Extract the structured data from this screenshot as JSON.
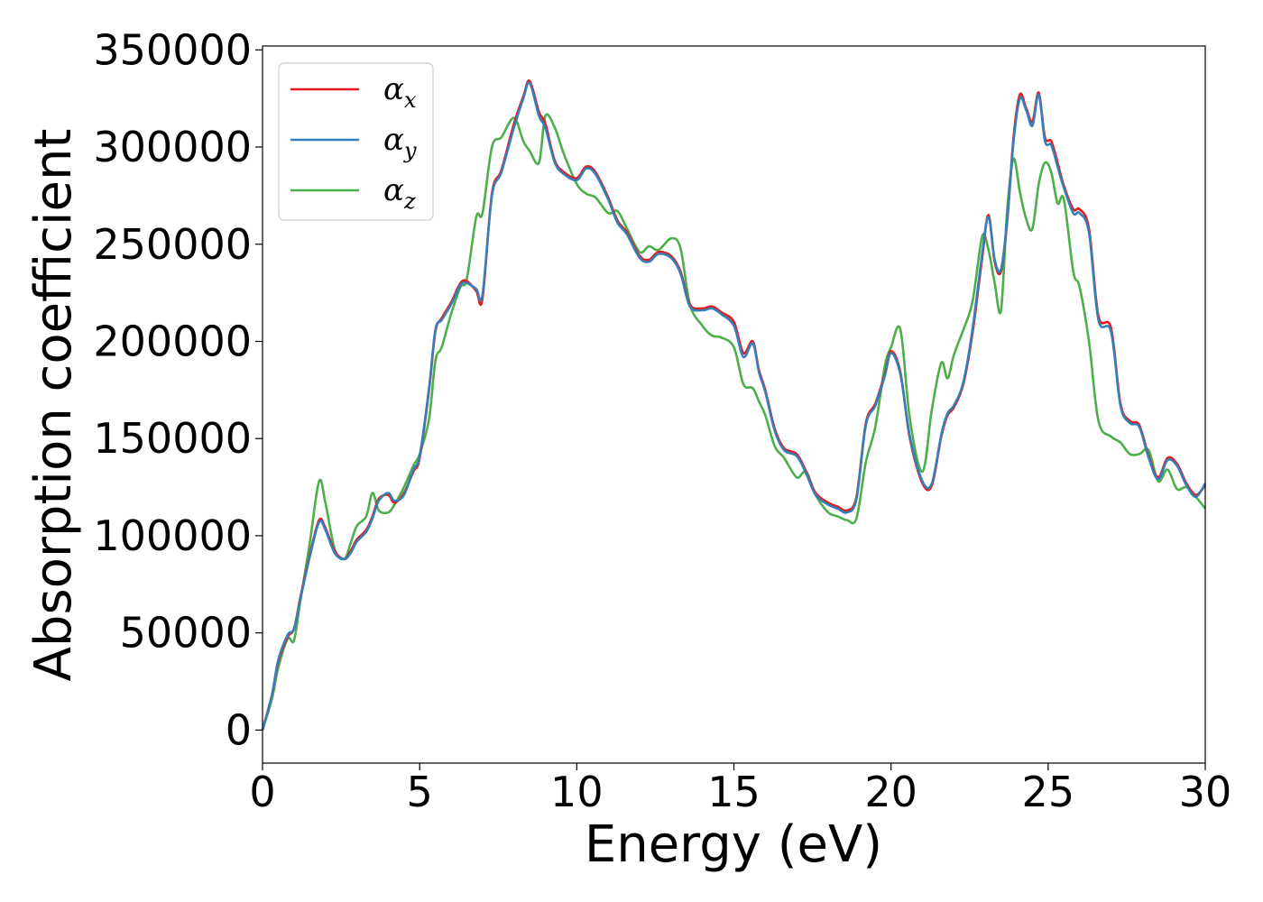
{
  "chart_data": {
    "type": "line",
    "xlabel": "Energy (eV)",
    "ylabel": "Absorption coefficient",
    "xlim": [
      0,
      30
    ],
    "ylim": [
      -17000,
      352000
    ],
    "xticks": [
      0,
      5,
      10,
      15,
      20,
      25,
      30
    ],
    "yticks": [
      0,
      50000,
      100000,
      150000,
      200000,
      250000,
      300000,
      350000
    ],
    "xtick_labels": [
      "0",
      "5",
      "10",
      "15",
      "20",
      "25",
      "30"
    ],
    "ytick_labels": [
      "0",
      "50000",
      "100000",
      "150000",
      "200000",
      "250000",
      "300000",
      "350000"
    ],
    "grid": false,
    "legend_position": "top-left",
    "series": [
      {
        "name": "α",
        "subscript": "x",
        "color": "#e41a1c",
        "x": [
          0,
          0.3,
          0.5,
          0.8,
          1.0,
          1.2,
          1.5,
          1.8,
          2.0,
          2.3,
          2.6,
          2.8,
          3.0,
          3.3,
          3.5,
          3.7,
          4.0,
          4.2,
          4.5,
          4.8,
          5.0,
          5.3,
          5.5,
          5.7,
          6.0,
          6.3,
          6.5,
          6.8,
          7.0,
          7.3,
          7.6,
          8.0,
          8.3,
          8.5,
          8.8,
          9.0,
          9.3,
          9.6,
          10.0,
          10.3,
          10.6,
          11.0,
          11.3,
          11.6,
          12.0,
          12.3,
          12.6,
          13.0,
          13.3,
          13.6,
          14.0,
          14.3,
          14.6,
          15.0,
          15.3,
          15.6,
          15.8,
          16.0,
          16.3,
          16.6,
          17.0,
          17.3,
          17.6,
          18.0,
          18.3,
          18.6,
          18.9,
          19.2,
          19.5,
          19.8,
          20.0,
          20.3,
          20.6,
          21.0,
          21.3,
          21.6,
          21.8,
          22.0,
          22.3,
          22.6,
          22.9,
          23.1,
          23.3,
          23.5,
          23.7,
          23.9,
          24.1,
          24.3,
          24.5,
          24.7,
          24.9,
          25.1,
          25.3,
          25.5,
          25.8,
          26.0,
          26.3,
          26.6,
          27.0,
          27.3,
          27.6,
          27.9,
          28.2,
          28.5,
          28.8,
          29.1,
          29.4,
          29.7,
          30.0
        ],
        "values": [
          0,
          18000,
          35000,
          48000,
          52000,
          68000,
          90000,
          108000,
          104000,
          92000,
          88000,
          92000,
          98000,
          103000,
          110000,
          119000,
          121000,
          117000,
          122000,
          133000,
          140000,
          175000,
          205000,
          212000,
          220000,
          230000,
          231000,
          226000,
          222000,
          276000,
          288000,
          312000,
          326000,
          334000,
          318000,
          312000,
          293000,
          287000,
          284000,
          290000,
          287000,
          274000,
          262000,
          256000,
          244000,
          242000,
          246000,
          244000,
          236000,
          219000,
          217000,
          218000,
          215000,
          210000,
          194000,
          200000,
          185000,
          175000,
          155000,
          145000,
          142000,
          133000,
          122000,
          117000,
          115000,
          113000,
          120000,
          158000,
          168000,
          183000,
          195000,
          184000,
          150000,
          127000,
          126000,
          151000,
          162000,
          166000,
          178000,
          205000,
          243000,
          265000,
          241000,
          236000,
          262000,
          305000,
          327000,
          320000,
          313000,
          328000,
          305000,
          303000,
          292000,
          280000,
          268000,
          268000,
          258000,
          213000,
          207000,
          168000,
          159000,
          157000,
          141000,
          130000,
          140000,
          137000,
          127000,
          121000,
          126000
        ]
      },
      {
        "name": "α",
        "subscript": "y",
        "color": "#377eb8",
        "x": [
          0,
          0.3,
          0.5,
          0.8,
          1.0,
          1.2,
          1.5,
          1.8,
          2.0,
          2.3,
          2.6,
          2.8,
          3.0,
          3.3,
          3.5,
          3.7,
          4.0,
          4.2,
          4.5,
          4.8,
          5.0,
          5.3,
          5.5,
          5.7,
          6.0,
          6.3,
          6.5,
          6.8,
          7.0,
          7.3,
          7.6,
          8.0,
          8.3,
          8.5,
          8.8,
          9.0,
          9.3,
          9.6,
          10.0,
          10.3,
          10.6,
          11.0,
          11.3,
          11.6,
          12.0,
          12.3,
          12.6,
          13.0,
          13.3,
          13.6,
          14.0,
          14.3,
          14.6,
          15.0,
          15.3,
          15.6,
          15.8,
          16.0,
          16.3,
          16.6,
          17.0,
          17.3,
          17.6,
          18.0,
          18.3,
          18.6,
          18.9,
          19.2,
          19.5,
          19.8,
          20.0,
          20.3,
          20.6,
          21.0,
          21.3,
          21.6,
          21.8,
          22.0,
          22.3,
          22.6,
          22.9,
          23.1,
          23.3,
          23.5,
          23.7,
          23.9,
          24.1,
          24.3,
          24.5,
          24.7,
          24.9,
          25.1,
          25.3,
          25.5,
          25.8,
          26.0,
          26.3,
          26.6,
          27.0,
          27.3,
          27.6,
          27.9,
          28.2,
          28.5,
          28.8,
          29.1,
          29.4,
          29.7,
          30.0
        ],
        "values": [
          0,
          18000,
          36000,
          49000,
          52000,
          67000,
          89000,
          107000,
          103000,
          91000,
          88000,
          91000,
          97000,
          102000,
          109000,
          118000,
          122000,
          118000,
          121000,
          134000,
          141000,
          176000,
          206000,
          211000,
          219000,
          229000,
          230000,
          227000,
          224000,
          275000,
          287000,
          310000,
          325000,
          333000,
          316000,
          310000,
          292000,
          286000,
          283000,
          289000,
          286000,
          273000,
          261000,
          255000,
          243000,
          241000,
          245000,
          243000,
          235000,
          218000,
          216000,
          217000,
          214000,
          208000,
          192000,
          199000,
          184000,
          174000,
          154000,
          144000,
          141000,
          132000,
          121000,
          116000,
          114000,
          112000,
          119000,
          157000,
          167000,
          182000,
          194000,
          183000,
          151000,
          128000,
          127000,
          152000,
          163000,
          167000,
          179000,
          207000,
          245000,
          264000,
          242000,
          237000,
          263000,
          303000,
          325000,
          319000,
          311000,
          327000,
          303000,
          301000,
          290000,
          279000,
          266000,
          266000,
          256000,
          211000,
          205000,
          167000,
          158000,
          156000,
          140000,
          129000,
          139000,
          136000,
          126000,
          120000,
          127000
        ]
      },
      {
        "name": "α",
        "subscript": "z",
        "color": "#4daf4a",
        "x": [
          0,
          0.3,
          0.5,
          0.8,
          1.0,
          1.2,
          1.5,
          1.8,
          2.0,
          2.3,
          2.6,
          2.8,
          3.0,
          3.3,
          3.5,
          3.7,
          4.0,
          4.2,
          4.5,
          4.8,
          5.0,
          5.3,
          5.5,
          5.7,
          6.0,
          6.3,
          6.5,
          6.8,
          7.0,
          7.3,
          7.6,
          8.0,
          8.3,
          8.5,
          8.8,
          9.0,
          9.3,
          9.6,
          10.0,
          10.3,
          10.6,
          11.0,
          11.3,
          11.6,
          12.0,
          12.3,
          12.6,
          13.0,
          13.3,
          13.6,
          14.0,
          14.3,
          14.6,
          15.0,
          15.3,
          15.6,
          15.8,
          16.0,
          16.3,
          16.6,
          17.0,
          17.3,
          17.6,
          18.0,
          18.3,
          18.6,
          18.9,
          19.2,
          19.5,
          19.8,
          20.0,
          20.3,
          20.6,
          21.0,
          21.3,
          21.6,
          21.8,
          22.0,
          22.3,
          22.6,
          22.9,
          23.1,
          23.3,
          23.5,
          23.7,
          23.9,
          24.1,
          24.3,
          24.5,
          24.7,
          24.9,
          25.1,
          25.3,
          25.5,
          25.8,
          26.0,
          26.3,
          26.6,
          27.0,
          27.3,
          27.6,
          27.9,
          28.2,
          28.5,
          28.8,
          29.1,
          29.4,
          29.7,
          30.0
        ],
        "values": [
          0,
          16000,
          32000,
          47000,
          46000,
          66000,
          96000,
          128000,
          117000,
          93000,
          88000,
          96000,
          105000,
          110000,
          122000,
          113000,
          112000,
          116000,
          125000,
          136000,
          142000,
          160000,
          190000,
          197000,
          214000,
          228000,
          232000,
          264000,
          266000,
          300000,
          305000,
          315000,
          303000,
          298000,
          292000,
          316000,
          310000,
          296000,
          281000,
          276000,
          274000,
          266000,
          267000,
          258000,
          246000,
          249000,
          247000,
          253000,
          248000,
          219000,
          208000,
          203000,
          202000,
          197000,
          178000,
          176000,
          169000,
          162000,
          146000,
          140000,
          130000,
          133000,
          121000,
          112000,
          110000,
          108000,
          109000,
          138000,
          156000,
          187000,
          197000,
          206000,
          160000,
          133000,
          165000,
          189000,
          181000,
          193000,
          206000,
          221000,
          254000,
          247000,
          230000,
          216000,
          268000,
          294000,
          277000,
          263000,
          258000,
          281000,
          292000,
          287000,
          271000,
          273000,
          236000,
          228000,
          200000,
          159000,
          151000,
          148000,
          142000,
          142000,
          144000,
          128000,
          134000,
          124000,
          125000,
          120000,
          114000
        ]
      }
    ]
  }
}
